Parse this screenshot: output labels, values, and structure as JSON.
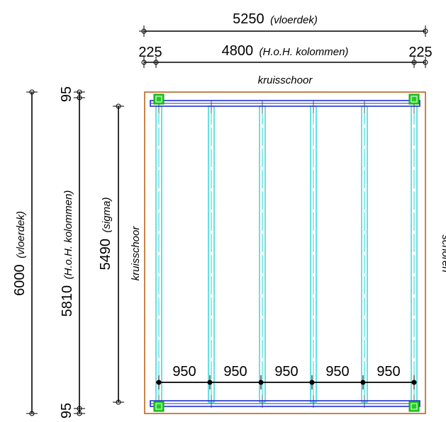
{
  "dimensions": {
    "top_width": {
      "value": "5250",
      "label": "(vloerdek)"
    },
    "column_width": {
      "value": "4800",
      "label": "(H.o.H. kolommen)"
    },
    "left_offset": "225",
    "right_offset": "225",
    "side_height": {
      "value": "6000",
      "label": "(vloerdek)"
    },
    "column_height": {
      "value": "5810",
      "label": "(H.o.H. kolommen)"
    },
    "sigma_height": {
      "value": "5490",
      "label": "(sigma)"
    },
    "top_offset": "95",
    "bottom_offset": "95",
    "spacings": [
      "950",
      "950",
      "950",
      "950",
      "950"
    ]
  },
  "labels": {
    "top_bracing": "kruisschoor",
    "left_bracing": "kruisschoor",
    "right_bracing": "schoren"
  },
  "colors": {
    "deck_outline": "#b8651b",
    "beam": "#1f2fd6",
    "sigma": "#29d3d6",
    "column": "#22cc22",
    "dim_line": "#000000"
  }
}
